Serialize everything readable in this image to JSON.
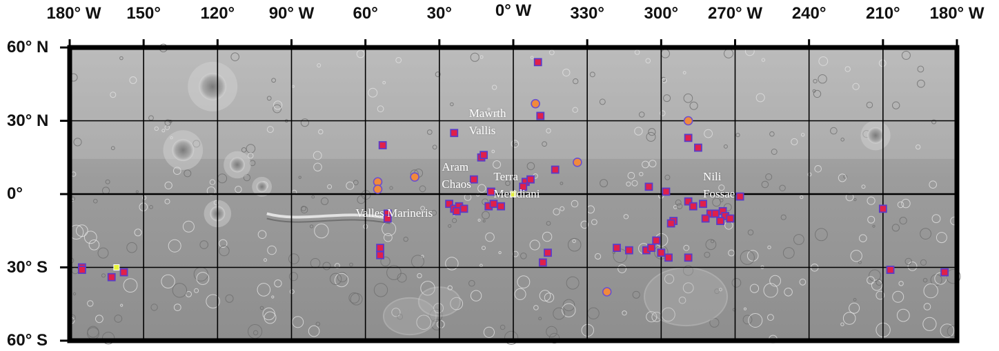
{
  "colors": {
    "frame": "#000000",
    "square_fill": "#e0204a",
    "square_stroke": "#5a3cc8",
    "circle_fill": "#f08a3c",
    "circle_stroke": "#6a4fd0",
    "highlight_fill": "#e8f53a"
  },
  "axes": {
    "top_labels": [
      "180° W",
      "150°",
      "120°",
      "90° W",
      "60°",
      "30°",
      "0° W",
      "330°",
      "300°",
      "270° W",
      "240°",
      "210°",
      "180° W"
    ],
    "left_labels": [
      "60° N",
      "30° N",
      "0°",
      "30° S",
      "60° S"
    ]
  },
  "places": [
    {
      "name": "Mawrth",
      "lon": -18,
      "lat": 33
    },
    {
      "name": "Vallis",
      "lon": -18,
      "lat": 26
    },
    {
      "name": "Aram",
      "lon": -29,
      "lat": 11
    },
    {
      "name": "Chaos",
      "lon": -29,
      "lat": 4
    },
    {
      "name": "Terra",
      "lon": -8,
      "lat": 7
    },
    {
      "name": "Meridiani",
      "lon": -8,
      "lat": 0
    },
    {
      "name": "Nili",
      "lon": 77,
      "lat": 7
    },
    {
      "name": "Fossae",
      "lon": 77,
      "lat": 0
    },
    {
      "name": "Valles Marineris",
      "lon": -64,
      "lat": -8
    }
  ],
  "markers": {
    "squares": [
      {
        "lon": 10,
        "lat": 54
      },
      {
        "lon": 11,
        "lat": 32
      },
      {
        "lon": -24,
        "lat": 25
      },
      {
        "lon": -53,
        "lat": 20
      },
      {
        "lon": -13,
        "lat": 15
      },
      {
        "lon": -12,
        "lat": 16
      },
      {
        "lon": 17,
        "lat": 10
      },
      {
        "lon": -16,
        "lat": 6
      },
      {
        "lon": 5,
        "lat": 5
      },
      {
        "lon": 7,
        "lat": 6
      },
      {
        "lon": 4,
        "lat": 3
      },
      {
        "lon": -9,
        "lat": 1
      },
      {
        "lon": 55,
        "lat": 3
      },
      {
        "lon": 62,
        "lat": 1
      },
      {
        "lon": 71,
        "lat": 23
      },
      {
        "lon": 75,
        "lat": 19
      },
      {
        "lon": 92,
        "lat": -1
      },
      {
        "lon": 71,
        "lat": -3
      },
      {
        "lon": 73,
        "lat": -5
      },
      {
        "lon": 77,
        "lat": -4
      },
      {
        "lon": 80,
        "lat": -8
      },
      {
        "lon": 82,
        "lat": -8
      },
      {
        "lon": 85,
        "lat": -7
      },
      {
        "lon": 86,
        "lat": -9
      },
      {
        "lon": 88,
        "lat": -10
      },
      {
        "lon": 84,
        "lat": -11
      },
      {
        "lon": 78,
        "lat": -10
      },
      {
        "lon": 65,
        "lat": -11
      },
      {
        "lon": 64,
        "lat": -12
      },
      {
        "lon": -26,
        "lat": -4
      },
      {
        "lon": -24,
        "lat": -6
      },
      {
        "lon": -22,
        "lat": -5
      },
      {
        "lon": -20,
        "lat": -6
      },
      {
        "lon": -23,
        "lat": -7
      },
      {
        "lon": -10,
        "lat": -5
      },
      {
        "lon": -8,
        "lat": -4
      },
      {
        "lon": -5,
        "lat": -5
      },
      {
        "lon": -51,
        "lat": -8
      },
      {
        "lon": -51,
        "lat": -10
      },
      {
        "lon": -54,
        "lat": -22
      },
      {
        "lon": -54,
        "lat": -25
      },
      {
        "lon": 14,
        "lat": -24
      },
      {
        "lon": 12,
        "lat": -28
      },
      {
        "lon": 42,
        "lat": -22
      },
      {
        "lon": 47,
        "lat": -23
      },
      {
        "lon": 54,
        "lat": -23
      },
      {
        "lon": 56,
        "lat": -22
      },
      {
        "lon": 58,
        "lat": -19
      },
      {
        "lon": 60,
        "lat": -24
      },
      {
        "lon": 63,
        "lat": -26
      },
      {
        "lon": 71,
        "lat": -26
      },
      {
        "lon": 150,
        "lat": -6
      },
      {
        "lon": 153,
        "lat": -31
      },
      {
        "lon": 175,
        "lat": -32
      },
      {
        "lon": -175,
        "lat": -30
      },
      {
        "lon": -175,
        "lat": -31
      },
      {
        "lon": -163,
        "lat": -34
      },
      {
        "lon": -158,
        "lat": -32
      }
    ],
    "circles": [
      {
        "lon": 9,
        "lat": 37
      },
      {
        "lon": 71,
        "lat": 30
      },
      {
        "lon": 26,
        "lat": 13
      },
      {
        "lon": -55,
        "lat": 5
      },
      {
        "lon": -55,
        "lat": 2
      },
      {
        "lon": -40,
        "lat": 7
      },
      {
        "lon": 38,
        "lat": -40
      }
    ],
    "highlights": [
      {
        "lon": 0,
        "lat": 0
      },
      {
        "lon": -161,
        "lat": -30
      }
    ]
  }
}
